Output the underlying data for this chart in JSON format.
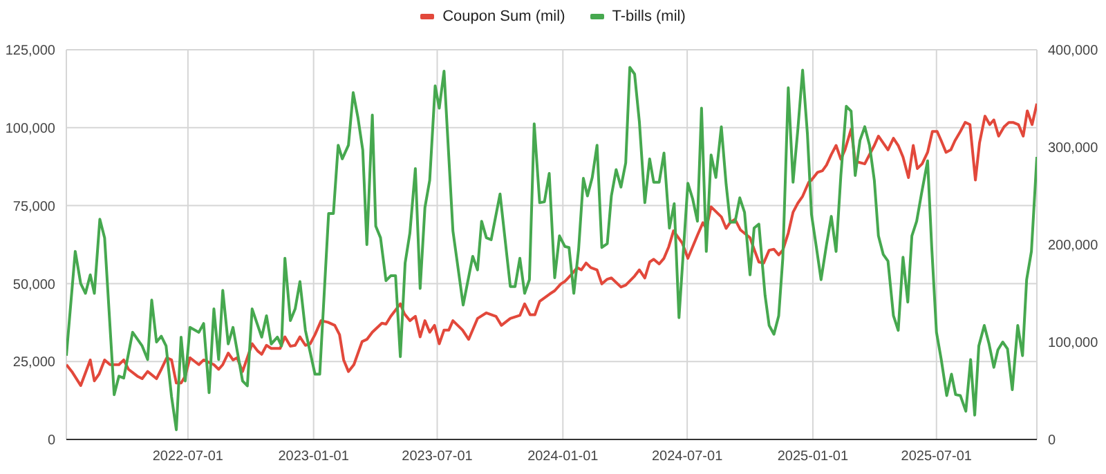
{
  "chart_data": {
    "type": "line",
    "legend": "top",
    "grid": true,
    "xlim": [
      "2022-01-04",
      "2025-11-25"
    ],
    "xticks": [
      "2022-07-01",
      "2023-01-01",
      "2023-07-01",
      "2024-01-01",
      "2024-07-01",
      "2025-01-01",
      "2025-07-01"
    ],
    "ylim": [
      0,
      125000
    ],
    "yticks": [
      {
        "value": 0,
        "label": "0"
      },
      {
        "value": 25000,
        "label": "25,000"
      },
      {
        "value": 50000,
        "label": "50,000"
      },
      {
        "value": 75000,
        "label": "75,000"
      },
      {
        "value": 100000,
        "label": "100,000"
      },
      {
        "value": 125000,
        "label": "125,000"
      }
    ],
    "y2lim": [
      0,
      400000
    ],
    "y2ticks": [
      {
        "value": 0,
        "label": "0"
      },
      {
        "value": 100000,
        "label": "100,000"
      },
      {
        "value": 200000,
        "label": "200,000"
      },
      {
        "value": 300000,
        "label": "300,000"
      },
      {
        "value": 400000,
        "label": "400,000"
      }
    ],
    "series": [
      {
        "name": "Coupon Sum (mil)",
        "color": "#e2483b",
        "axis": "y",
        "x": [
          "2022-01-04",
          "2022-01-12",
          "2022-01-25",
          "2022-02-08",
          "2022-02-14",
          "2022-02-21",
          "2022-03-01",
          "2022-03-09",
          "2022-03-22",
          "2022-03-29",
          "2022-04-05",
          "2022-04-18",
          "2022-04-25",
          "2022-05-03",
          "2022-05-16",
          "2022-05-23",
          "2022-05-31",
          "2022-06-07",
          "2022-06-14",
          "2022-06-21",
          "2022-06-27",
          "2022-07-04",
          "2022-07-17",
          "2022-07-24",
          "2022-08-08",
          "2022-08-15",
          "2022-08-21",
          "2022-08-29",
          "2022-09-05",
          "2022-09-11",
          "2022-09-19",
          "2022-10-03",
          "2022-10-11",
          "2022-10-17",
          "2022-10-24",
          "2022-10-31",
          "2022-11-13",
          "2022-11-20",
          "2022-11-28",
          "2022-12-05",
          "2022-12-12",
          "2022-12-20",
          "2022-12-27",
          "2023-01-03",
          "2023-01-12",
          "2023-01-22",
          "2023-02-01",
          "2023-02-08",
          "2023-02-14",
          "2023-02-21",
          "2023-03-01",
          "2023-03-13",
          "2023-03-20",
          "2023-03-28",
          "2023-04-11",
          "2023-04-17",
          "2023-04-24",
          "2023-05-08",
          "2023-05-14",
          "2023-05-22",
          "2023-05-30",
          "2023-06-06",
          "2023-06-13",
          "2023-06-20",
          "2023-06-27",
          "2023-07-04",
          "2023-07-11",
          "2023-07-18",
          "2023-07-24",
          "2023-08-07",
          "2023-08-16",
          "2023-08-29",
          "2023-09-11",
          "2023-09-25",
          "2023-10-03",
          "2023-10-16",
          "2023-10-30",
          "2023-11-06",
          "2023-11-14",
          "2023-11-21",
          "2023-11-28",
          "2023-12-13",
          "2023-12-20",
          "2023-12-29",
          "2024-01-04",
          "2024-01-07",
          "2024-01-15",
          "2024-01-22",
          "2024-01-28",
          "2024-02-04",
          "2024-02-11",
          "2024-02-20",
          "2024-02-27",
          "2024-03-06",
          "2024-03-12",
          "2024-03-26",
          "2024-04-02",
          "2024-04-15",
          "2024-04-22",
          "2024-04-30",
          "2024-05-07",
          "2024-05-13",
          "2024-05-21",
          "2024-05-28",
          "2024-06-04",
          "2024-06-11",
          "2024-06-24",
          "2024-07-02",
          "2024-07-16",
          "2024-07-24",
          "2024-07-29",
          "2024-08-05",
          "2024-08-20",
          "2024-08-27",
          "2024-09-02",
          "2024-09-09",
          "2024-09-17",
          "2024-10-01",
          "2024-10-07",
          "2024-10-14",
          "2024-10-21",
          "2024-10-29",
          "2024-11-05",
          "2024-11-12",
          "2024-11-18",
          "2024-11-26",
          "2024-12-03",
          "2024-12-10",
          "2024-12-17",
          "2024-12-26",
          "2024-12-30",
          "2025-01-08",
          "2025-01-15",
          "2025-01-21",
          "2025-01-28",
          "2025-02-04",
          "2025-02-11",
          "2025-02-17",
          "2025-02-26",
          "2025-03-04",
          "2025-03-18",
          "2025-03-25",
          "2025-04-01",
          "2025-04-07",
          "2025-04-14",
          "2025-04-21",
          "2025-04-29",
          "2025-05-06",
          "2025-05-13",
          "2025-05-21",
          "2025-05-28",
          "2025-06-03",
          "2025-06-10",
          "2025-06-18",
          "2025-06-25",
          "2025-07-02",
          "2025-07-08",
          "2025-07-15",
          "2025-07-22",
          "2025-07-28",
          "2025-08-05",
          "2025-08-12",
          "2025-08-19",
          "2025-08-27",
          "2025-09-02",
          "2025-09-10",
          "2025-09-17",
          "2025-09-23",
          "2025-09-30",
          "2025-10-08",
          "2025-10-15",
          "2025-10-21",
          "2025-10-29",
          "2025-11-05",
          "2025-11-11",
          "2025-11-18",
          "2025-11-25"
        ],
        "values": [
          24000,
          21800,
          17300,
          25500,
          18800,
          21000,
          25500,
          24000,
          24000,
          25500,
          22500,
          20300,
          19500,
          21800,
          19500,
          22500,
          26200,
          25500,
          18100,
          18100,
          20300,
          26200,
          24000,
          25500,
          24000,
          22500,
          24000,
          27700,
          25500,
          26200,
          21800,
          30700,
          28400,
          27300,
          30200,
          29200,
          29200,
          32900,
          29900,
          30200,
          32900,
          30200,
          30700,
          33600,
          38100,
          37600,
          36600,
          33600,
          25500,
          21800,
          24000,
          31400,
          32100,
          34400,
          37300,
          37000,
          39500,
          43500,
          40300,
          38100,
          39500,
          32900,
          38100,
          34400,
          36600,
          30700,
          35100,
          35100,
          38100,
          35100,
          32100,
          38800,
          40600,
          39500,
          36600,
          38800,
          39800,
          43500,
          40000,
          40000,
          44300,
          46700,
          47700,
          49900,
          50700,
          51400,
          53300,
          55100,
          54400,
          56600,
          55100,
          54400,
          49900,
          51400,
          51800,
          48900,
          49500,
          52400,
          54400,
          51800,
          56900,
          57800,
          56300,
          58100,
          61800,
          66900,
          62900,
          58100,
          65500,
          69500,
          67700,
          74600,
          71400,
          67700,
          69600,
          70600,
          67200,
          64700,
          61000,
          56900,
          56600,
          60700,
          61000,
          59200,
          60700,
          66200,
          72900,
          75800,
          78000,
          82500,
          83200,
          85700,
          86200,
          88000,
          91400,
          94300,
          89900,
          92900,
          99500,
          89200,
          88400,
          91400,
          94300,
          97300,
          95100,
          92900,
          96600,
          94300,
          90600,
          84000,
          94300,
          86900,
          88400,
          92100,
          98800,
          98800,
          95800,
          92100,
          92900,
          95800,
          98800,
          101700,
          101000,
          83200,
          95100,
          103700,
          101000,
          102500,
          97300,
          100300,
          101700,
          101700,
          101000,
          97300,
          105400,
          101000,
          107700
        ]
      },
      {
        "name": "T-bills (mil)",
        "color": "#46a84f",
        "axis": "y2",
        "x": [
          "2022-01-04",
          "2022-01-17",
          "2022-01-25",
          "2022-02-01",
          "2022-02-08",
          "2022-02-14",
          "2022-02-22",
          "2022-03-01",
          "2022-03-15",
          "2022-03-22",
          "2022-03-29",
          "2022-04-11",
          "2022-04-25",
          "2022-05-03",
          "2022-05-09",
          "2022-05-16",
          "2022-05-23",
          "2022-05-30",
          "2022-06-07",
          "2022-06-14",
          "2022-06-21",
          "2022-06-27",
          "2022-07-04",
          "2022-07-17",
          "2022-07-24",
          "2022-08-01",
          "2022-08-08",
          "2022-08-15",
          "2022-08-21",
          "2022-08-29",
          "2022-09-05",
          "2022-09-19",
          "2022-09-26",
          "2022-10-03",
          "2022-10-17",
          "2022-10-24",
          "2022-10-31",
          "2022-11-09",
          "2022-11-15",
          "2022-11-20",
          "2022-11-28",
          "2022-12-05",
          "2022-12-12",
          "2022-12-20",
          "2023-01-03",
          "2023-01-10",
          "2023-01-23",
          "2023-01-30",
          "2023-02-06",
          "2023-02-12",
          "2023-02-21",
          "2023-02-28",
          "2023-03-07",
          "2023-03-14",
          "2023-03-20",
          "2023-03-28",
          "2023-04-02",
          "2023-04-09",
          "2023-04-17",
          "2023-04-24",
          "2023-05-01",
          "2023-05-08",
          "2023-05-15",
          "2023-05-22",
          "2023-05-30",
          "2023-06-06",
          "2023-06-13",
          "2023-06-20",
          "2023-06-28",
          "2023-07-04",
          "2023-07-11",
          "2023-07-24",
          "2023-08-08",
          "2023-08-22",
          "2023-08-29",
          "2023-09-04",
          "2023-09-11",
          "2023-09-18",
          "2023-10-01",
          "2023-10-16",
          "2023-10-23",
          "2023-10-30",
          "2023-11-06",
          "2023-11-13",
          "2023-11-20",
          "2023-11-28",
          "2023-12-05",
          "2023-12-12",
          "2023-12-20",
          "2023-12-27",
          "2024-01-04",
          "2024-01-10",
          "2024-01-17",
          "2024-01-24",
          "2024-01-31",
          "2024-02-06",
          "2024-02-13",
          "2024-02-20",
          "2024-02-27",
          "2024-03-06",
          "2024-03-12",
          "2024-03-19",
          "2024-03-26",
          "2024-04-02",
          "2024-04-08",
          "2024-04-15",
          "2024-04-22",
          "2024-04-30",
          "2024-05-07",
          "2024-05-13",
          "2024-05-21",
          "2024-05-28",
          "2024-06-05",
          "2024-06-12",
          "2024-06-19",
          "2024-07-02",
          "2024-07-09",
          "2024-07-16",
          "2024-07-22",
          "2024-07-29",
          "2024-08-05",
          "2024-08-12",
          "2024-08-20",
          "2024-08-27",
          "2024-09-02",
          "2024-09-09",
          "2024-09-16",
          "2024-09-23",
          "2024-10-01",
          "2024-10-07",
          "2024-10-14",
          "2024-10-23",
          "2024-10-29",
          "2024-11-05",
          "2024-11-12",
          "2024-11-18",
          "2024-11-26",
          "2024-12-03",
          "2024-12-10",
          "2024-12-17",
          "2024-12-24",
          "2024-12-30",
          "2025-01-06",
          "2025-01-13",
          "2025-01-21",
          "2025-01-28",
          "2025-02-04",
          "2025-02-11",
          "2025-02-19",
          "2025-02-26",
          "2025-03-04",
          "2025-03-11",
          "2025-03-18",
          "2025-03-25",
          "2025-04-01",
          "2025-04-07",
          "2025-04-14",
          "2025-04-21",
          "2025-04-29",
          "2025-05-06",
          "2025-05-13",
          "2025-05-20",
          "2025-05-26",
          "2025-06-02",
          "2025-06-09",
          "2025-06-18",
          "2025-06-24",
          "2025-07-01",
          "2025-07-08",
          "2025-07-16",
          "2025-07-23",
          "2025-07-29",
          "2025-08-05",
          "2025-08-13",
          "2025-08-20",
          "2025-08-26",
          "2025-09-01",
          "2025-09-09",
          "2025-09-16",
          "2025-09-23",
          "2025-09-29",
          "2025-10-06",
          "2025-10-13",
          "2025-10-20",
          "2025-10-28",
          "2025-11-04",
          "2025-11-10",
          "2025-11-17",
          "2025-11-25"
        ],
        "values": [
          86000,
          193000,
          160000,
          150000,
          169000,
          150000,
          226000,
          207000,
          46000,
          65000,
          63000,
          110000,
          96000,
          82000,
          143000,
          100000,
          106000,
          96000,
          44000,
          10000,
          105000,
          60000,
          115000,
          110000,
          119000,
          48000,
          134000,
          82000,
          153000,
          98000,
          115000,
          60000,
          55000,
          134000,
          105000,
          127000,
          98000,
          105000,
          96000,
          186000,
          122000,
          134000,
          162000,
          112000,
          67000,
          67000,
          232000,
          232000,
          302000,
          288000,
          302000,
          356000,
          330000,
          297000,
          200000,
          333000,
          219000,
          207000,
          163000,
          168000,
          168000,
          85000,
          181000,
          212000,
          278000,
          155000,
          238000,
          266000,
          363000,
          340000,
          378000,
          214000,
          138000,
          188000,
          174000,
          224000,
          207000,
          205000,
          252000,
          157000,
          157000,
          186000,
          150000,
          164000,
          324000,
          243000,
          244000,
          273000,
          166000,
          209000,
          198000,
          197000,
          150000,
          195000,
          268000,
          250000,
          269000,
          302000,
          197000,
          201000,
          250000,
          277000,
          259000,
          284000,
          382000,
          375000,
          326000,
          243000,
          288000,
          264000,
          264000,
          294000,
          217000,
          242000,
          125000,
          263000,
          247000,
          224000,
          340000,
          193000,
          292000,
          269000,
          321000,
          262000,
          223000,
          223000,
          248000,
          233000,
          169000,
          217000,
          221000,
          148000,
          117000,
          108000,
          127000,
          186000,
          361000,
          264000,
          318000,
          379000,
          314000,
          231000,
          198000,
          164000,
          200000,
          229000,
          193000,
          271000,
          342000,
          337000,
          271000,
          307000,
          321000,
          302000,
          266000,
          209000,
          190000,
          183000,
          127000,
          112000,
          187000,
          141000,
          209000,
          224000,
          252000,
          286000,
          198000,
          110000,
          82000,
          45000,
          67000,
          46000,
          45000,
          29000,
          82000,
          25000,
          96000,
          117000,
          98000,
          74000,
          92000,
          100000,
          93000,
          51000,
          117000,
          86000,
          164000,
          193000,
          290000
        ]
      }
    ]
  }
}
